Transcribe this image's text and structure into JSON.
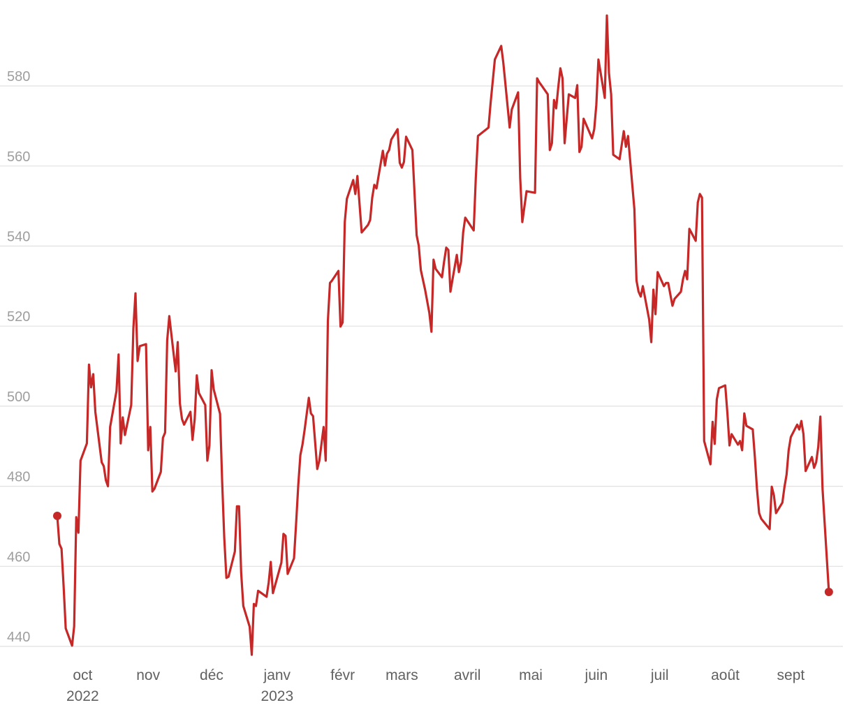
{
  "chart_data": {
    "type": "line",
    "title": "",
    "xlabel": "",
    "ylabel": "",
    "x_unit": "days since first point (2022-09-19)",
    "ylim": [
      436,
      600
    ],
    "grid": true,
    "legend": "none",
    "color": "#c62828",
    "yticks": [
      440,
      460,
      480,
      500,
      520,
      540,
      560,
      580
    ],
    "ytick_labels": [
      "440",
      "460",
      "480",
      "500",
      "520",
      "540",
      "560",
      "580"
    ],
    "xticks": [
      {
        "day": 12,
        "label": "oct",
        "sub": "2022"
      },
      {
        "day": 43,
        "label": "nov",
        "sub": ""
      },
      {
        "day": 73,
        "label": "déc",
        "sub": ""
      },
      {
        "day": 104,
        "label": "janv",
        "sub": "2023"
      },
      {
        "day": 135,
        "label": "févr",
        "sub": ""
      },
      {
        "day": 163,
        "label": "mars",
        "sub": ""
      },
      {
        "day": 194,
        "label": "avril",
        "sub": ""
      },
      {
        "day": 224,
        "label": "mai",
        "sub": ""
      },
      {
        "day": 255,
        "label": "juin",
        "sub": ""
      },
      {
        "day": 285,
        "label": "juil",
        "sub": ""
      },
      {
        "day": 316,
        "label": "août",
        "sub": ""
      },
      {
        "day": 347,
        "label": "sept",
        "sub": ""
      }
    ],
    "series": [
      {
        "name": "value",
        "points": [
          [
            0,
            472.6
          ],
          [
            1,
            465.6
          ],
          [
            2,
            464.4
          ],
          [
            3,
            455
          ],
          [
            4,
            444.5
          ],
          [
            7,
            440.2
          ],
          [
            8,
            445
          ],
          [
            9,
            472.3
          ],
          [
            10,
            468.4
          ],
          [
            11,
            486.4
          ],
          [
            14,
            490.7
          ],
          [
            15,
            510.4
          ],
          [
            16,
            504.7
          ],
          [
            17,
            508
          ],
          [
            18,
            498.6
          ],
          [
            21,
            486
          ],
          [
            22,
            485
          ],
          [
            23,
            481.5
          ],
          [
            24,
            480
          ],
          [
            25,
            494.8
          ],
          [
            28,
            503.8
          ],
          [
            29,
            512.9
          ],
          [
            30,
            490.7
          ],
          [
            31,
            497.2
          ],
          [
            32,
            492.8
          ],
          [
            35,
            500.3
          ],
          [
            36,
            519.5
          ],
          [
            37,
            528.2
          ],
          [
            38,
            511.3
          ],
          [
            39,
            515
          ],
          [
            42,
            515.5
          ],
          [
            43,
            489
          ],
          [
            44,
            494.8
          ],
          [
            45,
            478.7
          ],
          [
            46,
            479.4
          ],
          [
            49,
            483.6
          ],
          [
            50,
            492.1
          ],
          [
            51,
            493.4
          ],
          [
            52,
            516.4
          ],
          [
            53,
            522.5
          ],
          [
            54,
            517.8
          ],
          [
            56,
            508.7
          ],
          [
            57,
            516
          ],
          [
            58,
            500.7
          ],
          [
            59,
            496.8
          ],
          [
            60,
            495.4
          ],
          [
            63,
            498.6
          ],
          [
            64,
            491.6
          ],
          [
            65,
            496.8
          ],
          [
            66,
            507.7
          ],
          [
            67,
            503.3
          ],
          [
            70,
            500.3
          ],
          [
            71,
            486.4
          ],
          [
            72,
            490.2
          ],
          [
            73,
            509
          ],
          [
            74,
            504.2
          ],
          [
            77,
            498.1
          ],
          [
            78,
            481.2
          ],
          [
            79,
            467.2
          ],
          [
            80,
            457.1
          ],
          [
            81,
            457.4
          ],
          [
            84,
            463.7
          ],
          [
            85,
            475
          ],
          [
            86,
            475
          ],
          [
            87,
            458.5
          ],
          [
            88,
            450.1
          ],
          [
            91,
            444.9
          ],
          [
            92,
            437.9
          ],
          [
            93,
            450.6
          ],
          [
            94,
            450.1
          ],
          [
            95,
            453.9
          ],
          [
            99,
            452.4
          ],
          [
            100,
            455.9
          ],
          [
            101,
            461.1
          ],
          [
            102,
            453.3
          ],
          [
            106,
            460.9
          ],
          [
            107,
            468.1
          ],
          [
            108,
            467.6
          ],
          [
            109,
            458.1
          ],
          [
            112,
            462
          ],
          [
            113,
            471
          ],
          [
            114,
            480.3
          ],
          [
            115,
            487.8
          ],
          [
            116,
            490.4
          ],
          [
            117,
            494.1
          ],
          [
            119,
            502.1
          ],
          [
            120,
            498.2
          ],
          [
            121,
            497.5
          ],
          [
            123,
            484.3
          ],
          [
            124,
            486.4
          ],
          [
            126,
            494.8
          ],
          [
            127,
            486.4
          ],
          [
            128,
            521.3
          ],
          [
            129,
            530.8
          ],
          [
            130,
            531.4
          ],
          [
            133,
            533.8
          ],
          [
            134,
            519.9
          ],
          [
            135,
            520.9
          ],
          [
            136,
            546
          ],
          [
            137,
            551.8
          ],
          [
            140,
            556.5
          ],
          [
            141,
            553
          ],
          [
            142,
            557.5
          ],
          [
            144,
            543.4
          ],
          [
            147,
            545.3
          ],
          [
            148,
            546.5
          ],
          [
            149,
            552.1
          ],
          [
            150,
            555.3
          ],
          [
            151,
            554.4
          ],
          [
            154,
            563.8
          ],
          [
            155,
            560.1
          ],
          [
            156,
            563.1
          ],
          [
            157,
            564
          ],
          [
            158,
            566.6
          ],
          [
            161,
            569.2
          ],
          [
            162,
            560.8
          ],
          [
            163,
            559.6
          ],
          [
            164,
            561
          ],
          [
            165,
            567.3
          ],
          [
            168,
            564
          ],
          [
            170,
            542.7
          ],
          [
            171,
            540.1
          ],
          [
            172,
            534
          ],
          [
            174,
            529.1
          ],
          [
            176,
            523.3
          ],
          [
            177,
            518.6
          ],
          [
            178,
            536.6
          ],
          [
            179,
            534.3
          ],
          [
            182,
            532.2
          ],
          [
            183,
            536.1
          ],
          [
            184,
            539.6
          ],
          [
            185,
            539
          ],
          [
            186,
            528.6
          ],
          [
            187,
            531.7
          ],
          [
            189,
            537.8
          ],
          [
            190,
            533.5
          ],
          [
            191,
            536.1
          ],
          [
            192,
            543.4
          ],
          [
            193,
            547.1
          ],
          [
            197,
            543.9
          ],
          [
            198,
            557
          ],
          [
            199,
            567.5
          ],
          [
            204,
            569.6
          ],
          [
            205,
            575.7
          ],
          [
            207,
            586.6
          ],
          [
            210,
            590
          ],
          [
            211,
            585.8
          ],
          [
            212,
            580.5
          ],
          [
            214,
            569.6
          ],
          [
            215,
            574.1
          ],
          [
            218,
            578.4
          ],
          [
            219,
            557
          ],
          [
            220,
            546
          ],
          [
            222,
            553.7
          ],
          [
            226,
            553.3
          ],
          [
            227,
            581.9
          ],
          [
            228,
            580.9
          ],
          [
            229,
            580.2
          ],
          [
            232,
            577.9
          ],
          [
            233,
            564
          ],
          [
            234,
            565.7
          ],
          [
            235,
            576.5
          ],
          [
            236,
            574.4
          ],
          [
            237,
            579.7
          ],
          [
            238,
            584.4
          ],
          [
            239,
            581.9
          ],
          [
            240,
            565.7
          ],
          [
            241,
            571.8
          ],
          [
            242,
            577.9
          ],
          [
            245,
            577
          ],
          [
            246,
            580.2
          ],
          [
            247,
            563.5
          ],
          [
            248,
            564.8
          ],
          [
            249,
            571.8
          ],
          [
            253,
            566.9
          ],
          [
            254,
            569.2
          ],
          [
            255,
            575.3
          ],
          [
            256,
            586.6
          ],
          [
            259,
            577
          ],
          [
            260,
            597.6
          ],
          [
            261,
            583.2
          ],
          [
            262,
            577.9
          ],
          [
            263,
            562.8
          ],
          [
            266,
            561.7
          ],
          [
            268,
            568.7
          ],
          [
            269,
            564.8
          ],
          [
            270,
            567.5
          ],
          [
            273,
            549.2
          ],
          [
            274,
            531.4
          ],
          [
            275,
            528.6
          ],
          [
            276,
            527.4
          ],
          [
            277,
            530
          ],
          [
            280,
            521.6
          ],
          [
            281,
            516
          ],
          [
            282,
            529.1
          ],
          [
            283,
            523
          ],
          [
            284,
            533.5
          ],
          [
            287,
            530
          ],
          [
            288,
            530.8
          ],
          [
            289,
            530.8
          ],
          [
            291,
            525.1
          ],
          [
            292,
            526.8
          ],
          [
            295,
            528.6
          ],
          [
            296,
            531.7
          ],
          [
            297,
            533.8
          ],
          [
            298,
            531.7
          ],
          [
            299,
            544.3
          ],
          [
            302,
            541.3
          ],
          [
            303,
            550.9
          ],
          [
            304,
            553
          ],
          [
            305,
            552.1
          ],
          [
            306,
            491.3
          ],
          [
            309,
            485.5
          ],
          [
            310,
            496.1
          ],
          [
            311,
            490.6
          ],
          [
            312,
            501.7
          ],
          [
            313,
            504.5
          ],
          [
            316,
            505.2
          ],
          [
            317,
            498.2
          ],
          [
            318,
            490.2
          ],
          [
            319,
            493
          ],
          [
            322,
            490.4
          ],
          [
            323,
            491.3
          ],
          [
            324,
            489
          ],
          [
            325,
            498.2
          ],
          [
            326,
            495.1
          ],
          [
            329,
            494.2
          ],
          [
            330,
            487.3
          ],
          [
            331,
            479.4
          ],
          [
            332,
            473.3
          ],
          [
            333,
            471.9
          ],
          [
            337,
            469.3
          ],
          [
            338,
            479.9
          ],
          [
            339,
            477.7
          ],
          [
            340,
            473.3
          ],
          [
            343,
            475.9
          ],
          [
            344,
            479.8
          ],
          [
            345,
            482.9
          ],
          [
            346,
            489
          ],
          [
            347,
            492.3
          ],
          [
            350,
            495.4
          ],
          [
            351,
            494.2
          ],
          [
            352,
            496.3
          ],
          [
            353,
            493
          ],
          [
            354,
            483.8
          ],
          [
            357,
            487.3
          ],
          [
            358,
            484.6
          ],
          [
            359,
            486
          ],
          [
            360,
            489.9
          ],
          [
            361,
            497.4
          ],
          [
            362,
            479.4
          ],
          [
            365,
            453.6
          ]
        ]
      }
    ]
  }
}
